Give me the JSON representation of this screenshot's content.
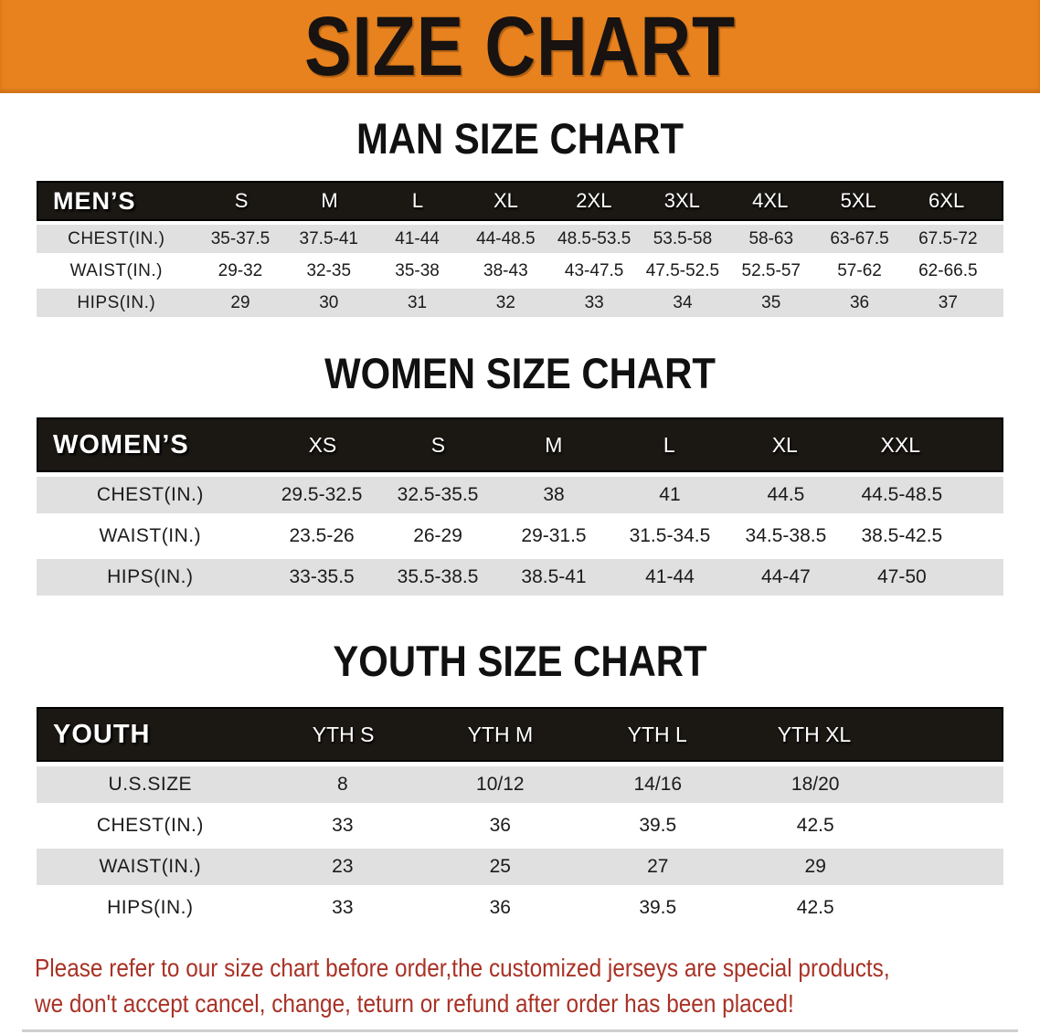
{
  "banner": {
    "title": "SIZE CHART"
  },
  "sections": [
    {
      "heading": "MAN SIZE CHART",
      "table": {
        "header_label": "MEN’S",
        "columns": [
          "S",
          "M",
          "L",
          "XL",
          "2XL",
          "3XL",
          "4XL",
          "5XL",
          "6XL"
        ],
        "rows": [
          {
            "label": "CHEST(IN.)",
            "values": [
              "35-37.5",
              "37.5-41",
              "41-44",
              "44-48.5",
              "48.5-53.5",
              "53.5-58",
              "58-63",
              "63-67.5",
              "67.5-72"
            ]
          },
          {
            "label": "WAIST(IN.)",
            "values": [
              "29-32",
              "32-35",
              "35-38",
              "38-43",
              "43-47.5",
              "47.5-52.5",
              "52.5-57",
              "57-62",
              "62-66.5"
            ]
          },
          {
            "label": "HIPS(IN.)",
            "values": [
              "29",
              "30",
              "31",
              "32",
              "33",
              "34",
              "35",
              "36",
              "37"
            ]
          }
        ]
      }
    },
    {
      "heading": "WOMEN SIZE CHART",
      "table": {
        "header_label": "WOMEN’S",
        "columns": [
          "XS",
          "S",
          "M",
          "L",
          "XL",
          "XXL"
        ],
        "rows": [
          {
            "label": "CHEST(IN.)",
            "values": [
              "29.5-32.5",
              "32.5-35.5",
              "38",
              "41",
              "44.5",
              "44.5-48.5"
            ]
          },
          {
            "label": "WAIST(IN.)",
            "values": [
              "23.5-26",
              "26-29",
              "29-31.5",
              "31.5-34.5",
              "34.5-38.5",
              "38.5-42.5"
            ]
          },
          {
            "label": "HIPS(IN.)",
            "values": [
              "33-35.5",
              "35.5-38.5",
              "38.5-41",
              "41-44",
              "44-47",
              "47-50"
            ]
          }
        ]
      }
    },
    {
      "heading": "YOUTH SIZE CHART",
      "table": {
        "header_label": "YOUTH",
        "columns": [
          "YTH S",
          "YTH M",
          "YTH L",
          "YTH XL"
        ],
        "rows": [
          {
            "label": "U.S.SIZE",
            "values": [
              "8",
              "10/12",
              "14/16",
              "18/20"
            ]
          },
          {
            "label": "CHEST(IN.)",
            "values": [
              "33",
              "36",
              "39.5",
              "42.5"
            ]
          },
          {
            "label": "WAIST(IN.)",
            "values": [
              "23",
              "25",
              "27",
              "29"
            ]
          },
          {
            "label": "HIPS(IN.)",
            "values": [
              "33",
              "36",
              "39.5",
              "42.5"
            ]
          }
        ]
      }
    }
  ],
  "disclaimer": {
    "line1": "Please refer to our size chart before order,the customized jerseys are special products,",
    "line2": "we don't accept cancel, change, teturn or refund after order has been placed!"
  },
  "colors": {
    "banner_orange": "#E8821E",
    "header_bar_black": "#1B1713",
    "row_gray": "#E0E0E0",
    "disclaimer_red": "#A93226"
  }
}
